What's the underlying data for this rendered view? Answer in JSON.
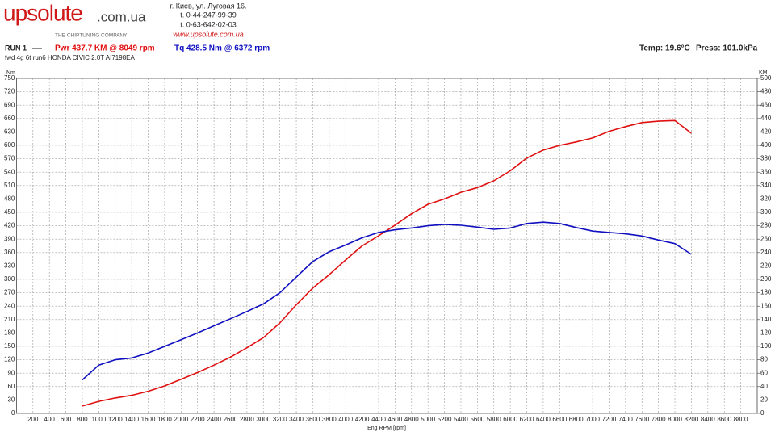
{
  "header": {
    "logo_main": "upsolute",
    "logo_domain": ".com.ua",
    "logo_tagline": "THE CHIPTUNING COMPANY",
    "address": "г. Киев, ул. Луговая 16.",
    "phone1": "t. 0-44-247-99-39",
    "phone2": "t. 0-63-642-02-03",
    "website": "www.upsolute.com.ua",
    "run": "RUN 1",
    "temp": "Temp: 19.6°C",
    "press": "Press: 101.0kPa",
    "vehicle": "fwd 4g 6t run6 HONDA CIVIC 2.0T AI7198EA"
  },
  "chart_data": {
    "type": "line",
    "x_label": "Eng RPM [rpm]",
    "y_label": "Nm",
    "y2_label": "KM",
    "x": [
      800,
      1000,
      1200,
      1400,
      1600,
      1800,
      2000,
      2200,
      2400,
      2600,
      2800,
      3000,
      3200,
      3400,
      3600,
      3800,
      4000,
      4200,
      4400,
      4600,
      4800,
      5000,
      5200,
      5400,
      5600,
      5800,
      6000,
      6200,
      6400,
      6600,
      6800,
      7000,
      7200,
      7400,
      7600,
      7800,
      8000,
      8200
    ],
    "series": [
      {
        "name": "Pwr  437.7 KM @ 8049 rpm",
        "color": "#e01010",
        "axis": "y2",
        "values": [
          11,
          18,
          23,
          27,
          33,
          41,
          51,
          61,
          72,
          84,
          98,
          113,
          135,
          162,
          187,
          207,
          229,
          250,
          265,
          281,
          298,
          312,
          320,
          330,
          337,
          347,
          362,
          381,
          393,
          400,
          405,
          411,
          421,
          428,
          434,
          436,
          437,
          418
        ]
      },
      {
        "name": "Tq  428.5 Nm @ 6372 rpm",
        "color": "#1010c0",
        "values": [
          75,
          108,
          120,
          124,
          135,
          150,
          165,
          180,
          196,
          212,
          228,
          245,
          270,
          305,
          340,
          362,
          377,
          393,
          405,
          411,
          415,
          420,
          423,
          421,
          417,
          412,
          415,
          425,
          428,
          425,
          416,
          408,
          405,
          402,
          397,
          388,
          380,
          356
        ]
      }
    ],
    "xlim": [
      0,
      9000
    ],
    "xticks": [
      200,
      400,
      600,
      800,
      1000,
      1200,
      1400,
      1600,
      1800,
      2000,
      2200,
      2400,
      2600,
      2800,
      3000,
      3200,
      3400,
      3600,
      3800,
      4000,
      4200,
      4400,
      4600,
      4800,
      5000,
      5200,
      5400,
      5600,
      5800,
      6000,
      6200,
      6400,
      6600,
      6800,
      7000,
      7200,
      7400,
      7600,
      7800,
      8000,
      8200,
      8400,
      8600,
      8800
    ],
    "ylim": [
      0,
      750
    ],
    "yticks": [
      0,
      30,
      60,
      90,
      120,
      150,
      180,
      210,
      240,
      270,
      300,
      330,
      360,
      390,
      420,
      450,
      480,
      510,
      540,
      570,
      600,
      630,
      660,
      690,
      720,
      750
    ],
    "y2lim": [
      0,
      500
    ],
    "y2ticks": [
      0,
      20,
      40,
      60,
      80,
      100,
      120,
      140,
      160,
      180,
      200,
      220,
      240,
      260,
      280,
      300,
      320,
      340,
      360,
      380,
      400,
      420,
      440,
      460,
      480,
      500
    ],
    "grid": true
  }
}
